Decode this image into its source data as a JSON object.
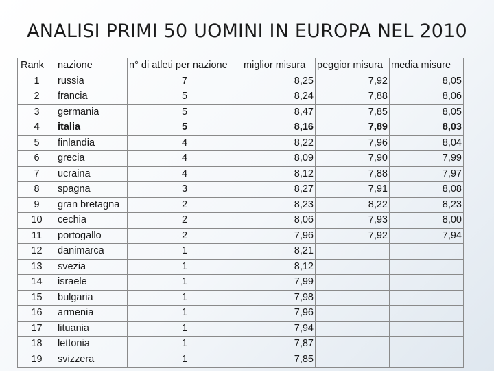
{
  "title": "ANALISI PRIMI 50 UOMINI IN EUROPA NEL 2010",
  "headers": [
    "Rank",
    "nazione",
    "n° di atleti per nazione",
    "miglior misura",
    "peggior misura",
    "media misure"
  ],
  "rows": [
    {
      "rank": "1",
      "nazione": "russia",
      "atleti": "7",
      "miglior": "8,25",
      "peggior": "7,92",
      "media": "8,05"
    },
    {
      "rank": "2",
      "nazione": "francia",
      "atleti": "5",
      "miglior": "8,24",
      "peggior": "7,88",
      "media": "8,06"
    },
    {
      "rank": "3",
      "nazione": "germania",
      "atleti": "5",
      "miglior": "8,47",
      "peggior": "7,85",
      "media": "8,05"
    },
    {
      "rank": "4",
      "nazione": "italia",
      "atleti": "5",
      "miglior": "8,16",
      "peggior": "7,89",
      "media": "8,03"
    },
    {
      "rank": "5",
      "nazione": "finlandia",
      "atleti": "4",
      "miglior": "8,22",
      "peggior": "7,96",
      "media": "8,04"
    },
    {
      "rank": "6",
      "nazione": "grecia",
      "atleti": "4",
      "miglior": "8,09",
      "peggior": "7,90",
      "media": "7,99"
    },
    {
      "rank": "7",
      "nazione": "ucraina",
      "atleti": "4",
      "miglior": "8,12",
      "peggior": "7,88",
      "media": "7,97"
    },
    {
      "rank": "8",
      "nazione": "spagna",
      "atleti": "3",
      "miglior": "8,27",
      "peggior": "7,91",
      "media": "8,08"
    },
    {
      "rank": "9",
      "nazione": "gran bretagna",
      "atleti": "2",
      "miglior": "8,23",
      "peggior": "8,22",
      "media": "8,23"
    },
    {
      "rank": "10",
      "nazione": "cechia",
      "atleti": "2",
      "miglior": "8,06",
      "peggior": "7,93",
      "media": "8,00"
    },
    {
      "rank": "11",
      "nazione": "portogallo",
      "atleti": "2",
      "miglior": "7,96",
      "peggior": "7,92",
      "media": "7,94"
    },
    {
      "rank": "12",
      "nazione": "danimarca",
      "atleti": "1",
      "miglior": "8,21",
      "peggior": "",
      "media": ""
    },
    {
      "rank": "13",
      "nazione": "svezia",
      "atleti": "1",
      "miglior": "8,12",
      "peggior": "",
      "media": ""
    },
    {
      "rank": "14",
      "nazione": "israele",
      "atleti": "1",
      "miglior": "7,99",
      "peggior": "",
      "media": ""
    },
    {
      "rank": "15",
      "nazione": "bulgaria",
      "atleti": "1",
      "miglior": "7,98",
      "peggior": "",
      "media": ""
    },
    {
      "rank": "16",
      "nazione": "armenia",
      "atleti": "1",
      "miglior": "7,96",
      "peggior": "",
      "media": ""
    },
    {
      "rank": "17",
      "nazione": "lituania",
      "atleti": "1",
      "miglior": "7,94",
      "peggior": "",
      "media": ""
    },
    {
      "rank": "18",
      "nazione": "lettonia",
      "atleti": "1",
      "miglior": "7,87",
      "peggior": "",
      "media": ""
    },
    {
      "rank": "19",
      "nazione": "svizzera",
      "atleti": "1",
      "miglior": "7,85",
      "peggior": "",
      "media": ""
    }
  ],
  "highlight_rank": "4"
}
